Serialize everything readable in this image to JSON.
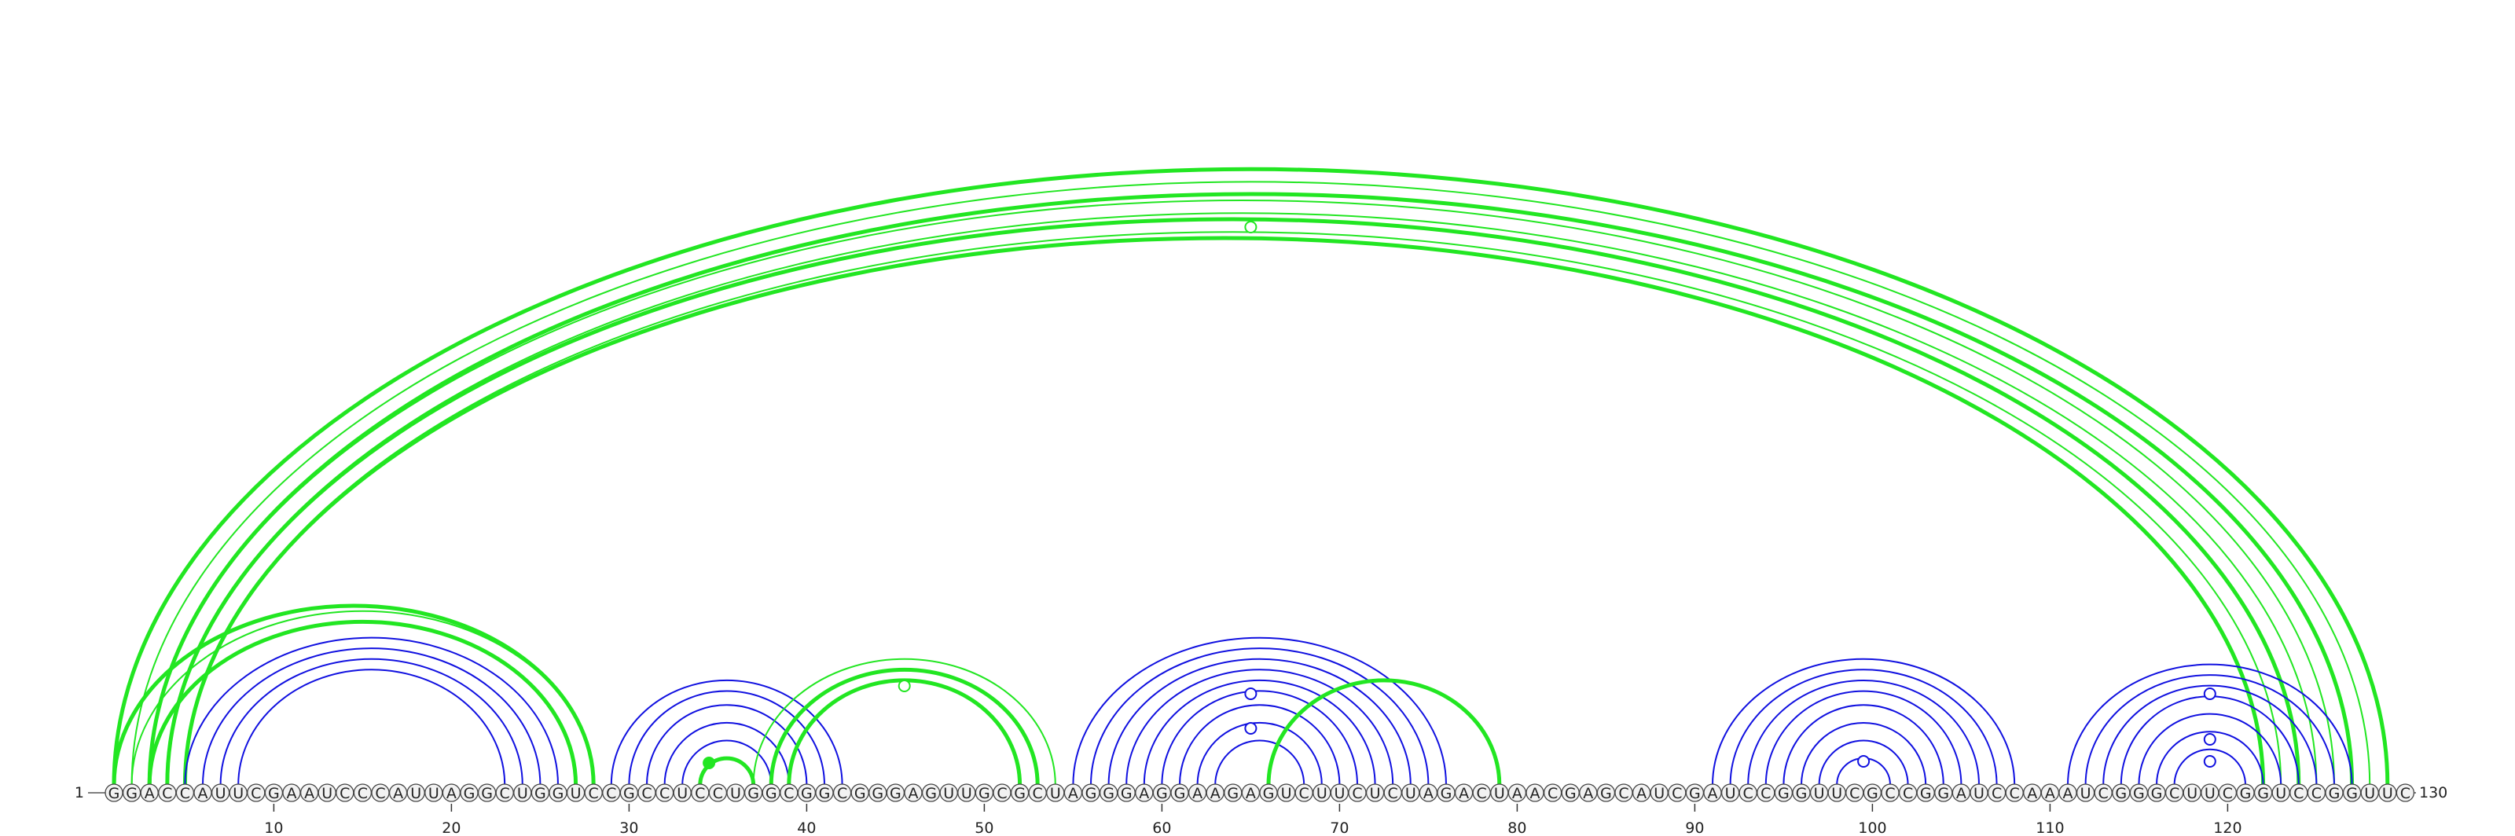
{
  "sequence": "GGACCAUUCGAAUCCCAUUAGGCUGGUCCGCCUCCUGGCGGCGGGAGUUGCGCUAGGGAGGAAGAGUCUUCUCUAGACUAACGAGCAUCGAUCCGGUUCGCCGGAUCCAAAUCGGGCUUCGGUCCGGUUC",
  "ends": {
    "left_index": "1",
    "right_index": "130"
  },
  "ticks": [
    "10",
    "20",
    "30",
    "40",
    "50",
    "60",
    "70",
    "80",
    "90",
    "100",
    "110",
    "120"
  ],
  "colors": {
    "green": "#22e622",
    "blue": "#1010e0",
    "text": "#222222",
    "nucleotide_fill": "#f2f2f2"
  },
  "arcs": [
    {
      "group": "green",
      "i": 1,
      "j": 129,
      "width": 5
    },
    {
      "group": "green",
      "i": 2,
      "j": 128,
      "width": 2
    },
    {
      "group": "green",
      "i": 3,
      "j": 127,
      "width": 5
    },
    {
      "group": "green",
      "i": 3,
      "j": 126,
      "width": 2
    },
    {
      "group": "green",
      "i": 4,
      "j": 125,
      "width": 2
    },
    {
      "group": "green",
      "i": 4,
      "j": 124,
      "width": 5
    },
    {
      "group": "green",
      "i": 5,
      "j": 123,
      "width": 2
    },
    {
      "group": "green",
      "i": 5,
      "j": 122,
      "width": 5
    },
    {
      "group": "green",
      "i": 1,
      "j": 28,
      "width": 5
    },
    {
      "group": "green",
      "i": 2,
      "j": 28,
      "width": 2
    },
    {
      "group": "green",
      "i": 3,
      "j": 27,
      "width": 5
    },
    {
      "group": "blue",
      "i": 5,
      "j": 26,
      "width": 2
    },
    {
      "group": "blue",
      "i": 6,
      "j": 25,
      "width": 2
    },
    {
      "group": "blue",
      "i": 7,
      "j": 24,
      "width": 2
    },
    {
      "group": "blue",
      "i": 8,
      "j": 23,
      "width": 2
    },
    {
      "group": "blue",
      "i": 29,
      "j": 42,
      "width": 2
    },
    {
      "group": "blue",
      "i": 30,
      "j": 41,
      "width": 2
    },
    {
      "group": "blue",
      "i": 31,
      "j": 40,
      "width": 2
    },
    {
      "group": "blue",
      "i": 32,
      "j": 39,
      "width": 2
    },
    {
      "group": "blue",
      "i": 33,
      "j": 38,
      "width": 2
    },
    {
      "group": "green",
      "i": 34,
      "j": 37,
      "width": 5
    },
    {
      "group": "green",
      "i": 37,
      "j": 54,
      "width": 2
    },
    {
      "group": "green",
      "i": 38,
      "j": 53,
      "width": 5
    },
    {
      "group": "green",
      "i": 39,
      "j": 52,
      "width": 5
    },
    {
      "group": "blue",
      "i": 55,
      "j": 76,
      "width": 2
    },
    {
      "group": "blue",
      "i": 56,
      "j": 75,
      "width": 2
    },
    {
      "group": "blue",
      "i": 57,
      "j": 74,
      "width": 2
    },
    {
      "group": "blue",
      "i": 58,
      "j": 73,
      "width": 2
    },
    {
      "group": "blue",
      "i": 59,
      "j": 72,
      "width": 2
    },
    {
      "group": "blue",
      "i": 60,
      "j": 71,
      "width": 2
    },
    {
      "group": "blue",
      "i": 61,
      "j": 70,
      "width": 2
    },
    {
      "group": "blue",
      "i": 62,
      "j": 69,
      "width": 2
    },
    {
      "group": "blue",
      "i": 63,
      "j": 68,
      "width": 2
    },
    {
      "group": "green",
      "i": 66,
      "j": 79,
      "width": 5
    },
    {
      "group": "blue",
      "i": 91,
      "j": 108,
      "width": 2
    },
    {
      "group": "blue",
      "i": 92,
      "j": 107,
      "width": 2
    },
    {
      "group": "blue",
      "i": 93,
      "j": 106,
      "width": 2
    },
    {
      "group": "blue",
      "i": 94,
      "j": 105,
      "width": 2
    },
    {
      "group": "blue",
      "i": 95,
      "j": 104,
      "width": 2
    },
    {
      "group": "blue",
      "i": 96,
      "j": 103,
      "width": 2
    },
    {
      "group": "blue",
      "i": 97,
      "j": 102,
      "width": 2
    },
    {
      "group": "blue",
      "i": 98,
      "j": 101,
      "width": 2
    },
    {
      "group": "blue",
      "i": 111,
      "j": 127,
      "width": 2
    },
    {
      "group": "blue",
      "i": 112,
      "j": 126,
      "width": 2
    },
    {
      "group": "blue",
      "i": 113,
      "j": 125,
      "width": 2
    },
    {
      "group": "blue",
      "i": 114,
      "j": 124,
      "width": 2
    },
    {
      "group": "blue",
      "i": 115,
      "j": 123,
      "width": 2
    },
    {
      "group": "blue",
      "i": 116,
      "j": 122,
      "width": 2
    },
    {
      "group": "blue",
      "i": 117,
      "j": 121,
      "width": 2
    }
  ],
  "markers": [
    {
      "group": "green",
      "index": 65,
      "arc_rise": 710,
      "filled": false
    },
    {
      "group": "green",
      "index": 45.5,
      "arc_rise": 126,
      "filled": false
    },
    {
      "group": "green",
      "index": 34.5,
      "arc_rise": 28,
      "filled": true
    },
    {
      "group": "blue",
      "index": 65,
      "arc_rise": 116,
      "filled": false
    },
    {
      "group": "blue",
      "index": 65,
      "arc_rise": 72,
      "filled": false
    },
    {
      "group": "blue",
      "index": 99.5,
      "arc_rise": 30,
      "filled": false
    },
    {
      "group": "blue",
      "index": 119,
      "arc_rise": 116,
      "filled": false
    },
    {
      "group": "blue",
      "index": 119,
      "arc_rise": 58,
      "filled": false
    },
    {
      "group": "blue",
      "index": 119,
      "arc_rise": 30,
      "filled": false
    }
  ]
}
